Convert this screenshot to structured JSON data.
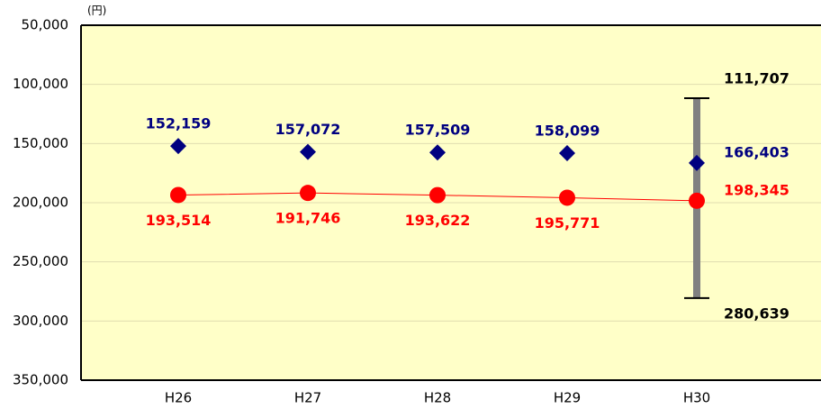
{
  "chart_data": {
    "type": "scatter",
    "unit_label": "(円)",
    "categories": [
      "H26",
      "H27",
      "H28",
      "H29",
      "H30"
    ],
    "ylim": [
      50000,
      350000
    ],
    "y_inverted": true,
    "yticks": [
      {
        "value": 50000,
        "label": "50,000"
      },
      {
        "value": 100000,
        "label": "100,000"
      },
      {
        "value": 150000,
        "label": "150,000"
      },
      {
        "value": 200000,
        "label": "200,000"
      },
      {
        "value": 250000,
        "label": "250,000"
      },
      {
        "value": 300000,
        "label": "300,000"
      },
      {
        "value": 350000,
        "label": "350,000"
      }
    ],
    "grid": true,
    "series": [
      {
        "color": "#000080",
        "marker": "diamond",
        "line": false,
        "values": [
          152159,
          157072,
          157509,
          158099,
          166403
        ],
        "value_labels": [
          "152,159",
          "157,072",
          "157,509",
          "158,099",
          "166,403"
        ]
      },
      {
        "color": "#ff0000",
        "marker": "circle",
        "line": true,
        "values": [
          193514,
          191746,
          193622,
          195771,
          198345
        ],
        "value_labels": [
          "193,514",
          "191,746",
          "193,622",
          "195,771",
          "198,345"
        ]
      }
    ],
    "range": {
      "index": 4,
      "color": "#808080",
      "values": [
        111707,
        280639
      ],
      "value_labels": [
        "111,707",
        "280,639"
      ]
    }
  }
}
